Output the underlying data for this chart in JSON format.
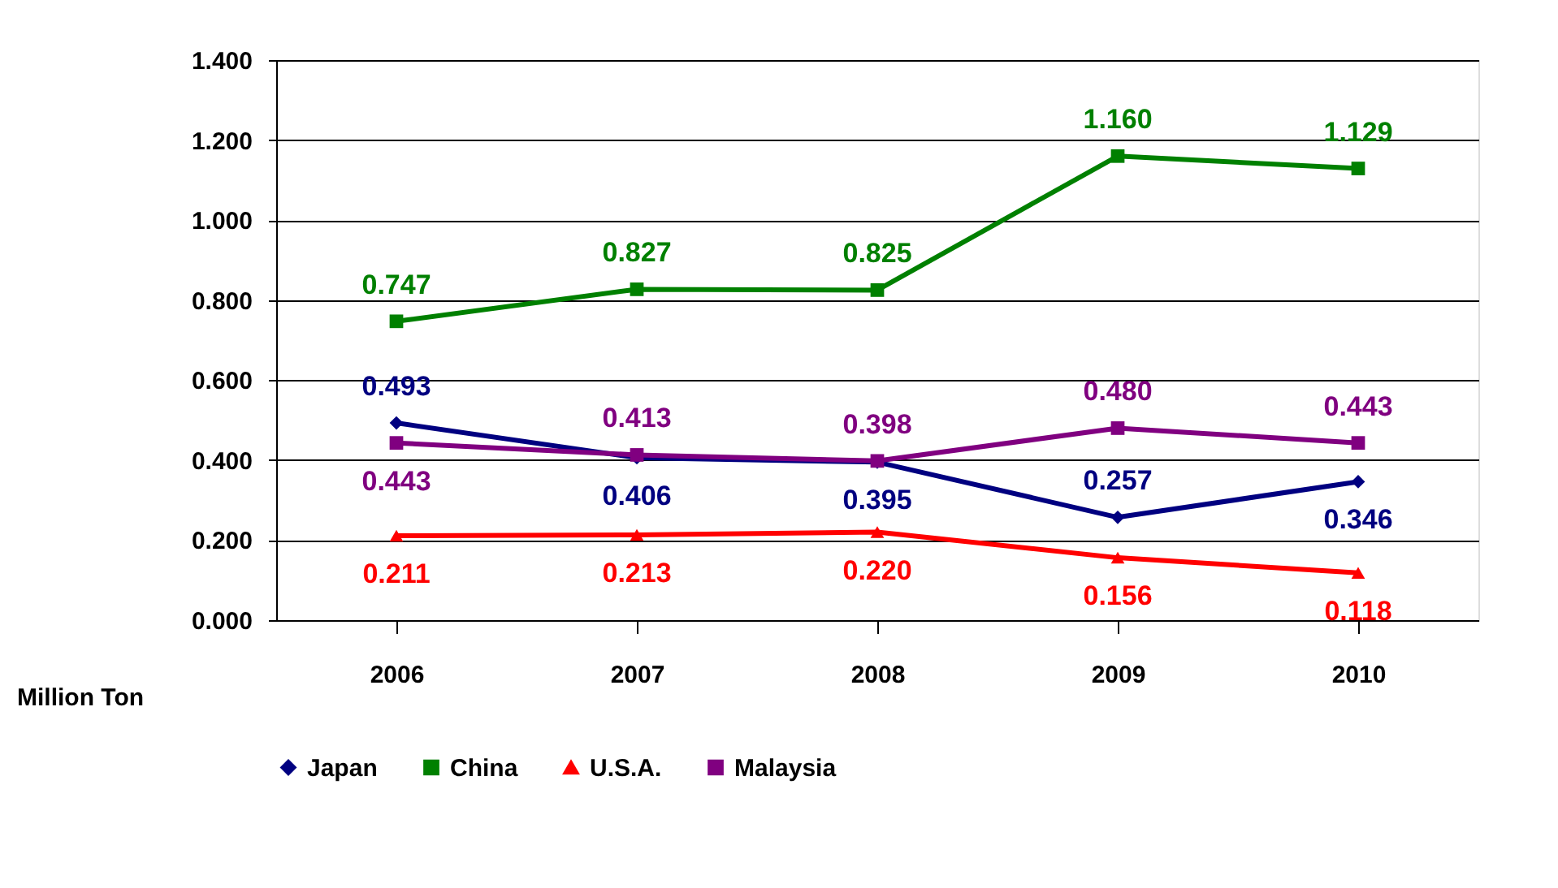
{
  "chart_data": {
    "type": "line",
    "ylabel": "Million Ton",
    "categories": [
      "2006",
      "2007",
      "2008",
      "2009",
      "2010"
    ],
    "ylim": [
      0,
      1.4
    ],
    "yticks": [
      {
        "value": 0,
        "label": "0.000"
      },
      {
        "value": 0.2,
        "label": "0.200"
      },
      {
        "value": 0.4,
        "label": "0.400"
      },
      {
        "value": 0.6,
        "label": "0.600"
      },
      {
        "value": 0.8,
        "label": "0.800"
      },
      {
        "value": 1.0,
        "label": "1.000"
      },
      {
        "value": 1.2,
        "label": "1.200"
      },
      {
        "value": 1.4,
        "label": "1.400"
      }
    ],
    "grid": "y",
    "legend": "bottom",
    "line_style": "solid",
    "series": [
      {
        "name": "Japan",
        "color": "#000080",
        "marker": "diamond",
        "values": [
          0.493,
          0.406,
          0.395,
          0.257,
          0.346
        ],
        "value_labels": [
          "0.493",
          "0.406",
          "0.395",
          "0.257",
          "0.346"
        ]
      },
      {
        "name": "China",
        "color": "#008000",
        "marker": "square",
        "values": [
          0.747,
          0.827,
          0.825,
          1.16,
          1.129
        ],
        "value_labels": [
          "0.747",
          "0.827",
          "0.825",
          "1.160",
          "1.129"
        ]
      },
      {
        "name": "U.S.A.",
        "color": "#ff0000",
        "marker": "triangle",
        "values": [
          0.211,
          0.213,
          0.22,
          0.156,
          0.118
        ],
        "value_labels": [
          "0.211",
          "0.213",
          "0.220",
          "0.156",
          "0.118"
        ]
      },
      {
        "name": "Malaysia",
        "color": "#800080",
        "marker": "square",
        "values": [
          0.443,
          0.413,
          0.398,
          0.48,
          0.443
        ],
        "value_labels": [
          "0.443",
          "0.413",
          "0.398",
          "0.480",
          "0.443"
        ]
      }
    ]
  }
}
